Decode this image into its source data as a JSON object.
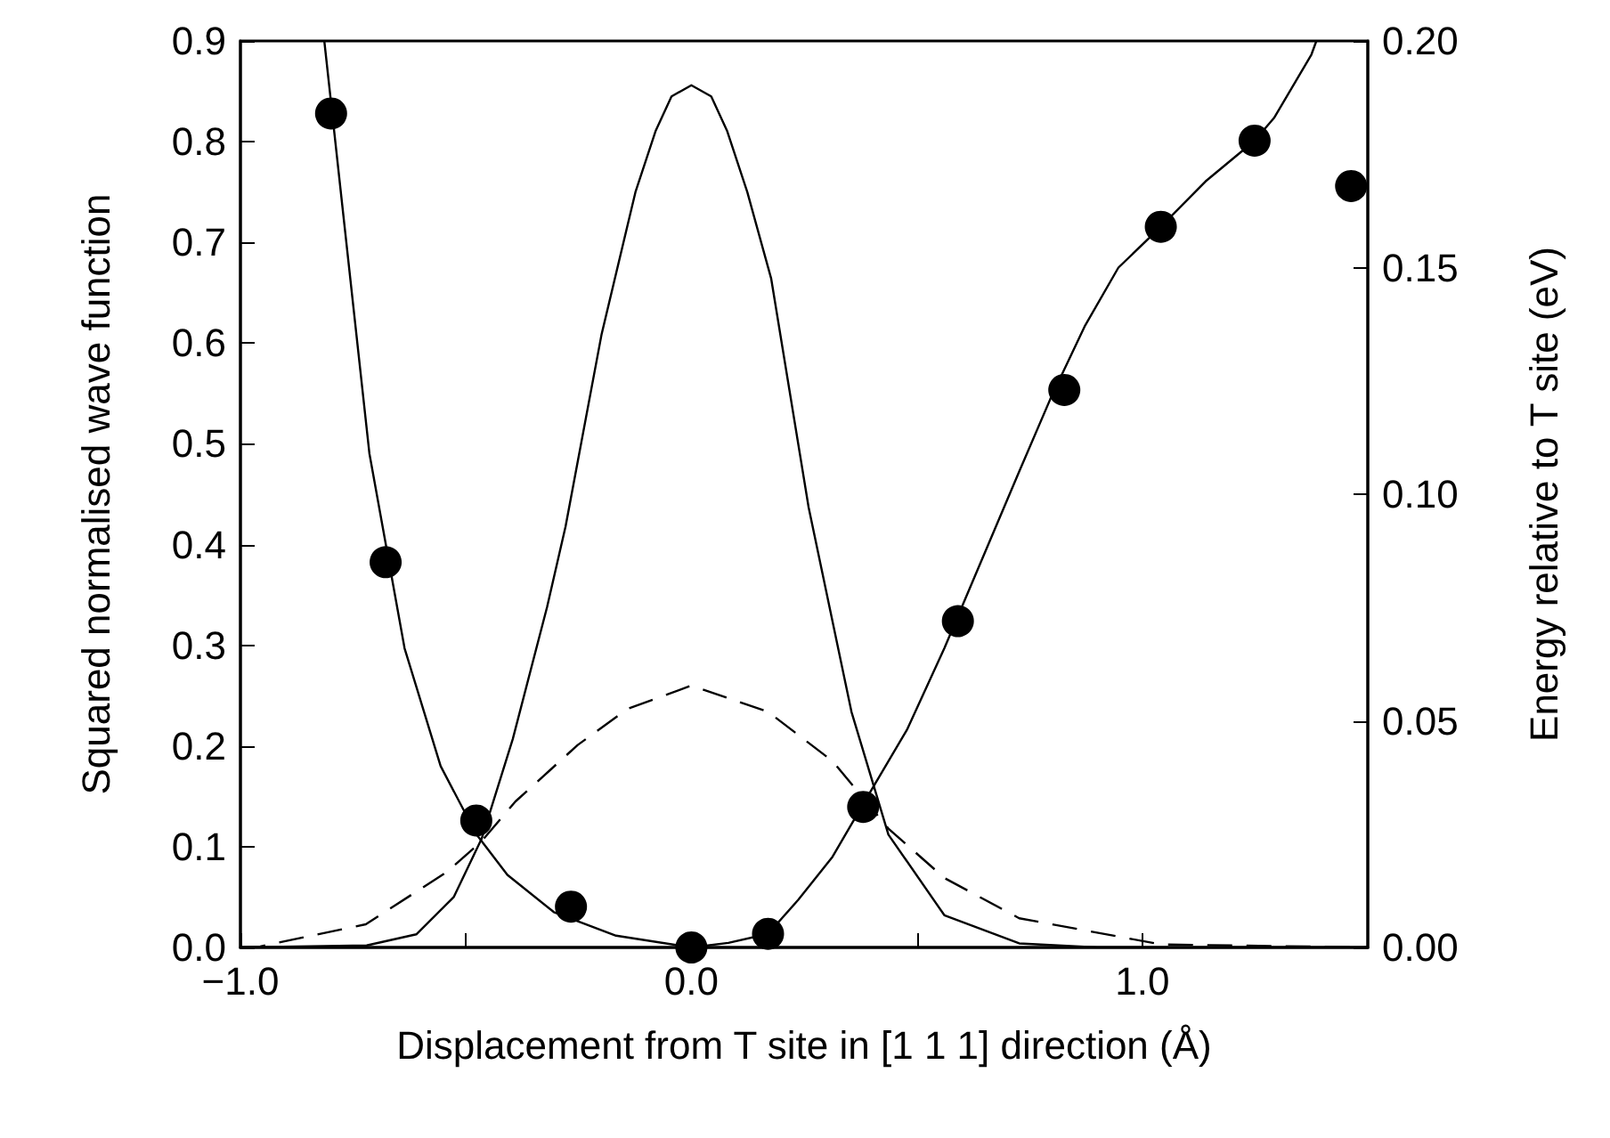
{
  "chart_data": {
    "type": "line",
    "xlabel": "Displacement from T site in [1 1 1] direction (Å)",
    "ylabel": "Squared normalised wave function",
    "y2label": "Energy relative to T site (eV)",
    "xlim": [
      -1.0,
      1.5
    ],
    "xticks": [
      {
        "value": -1.0,
        "label": "−1.0"
      },
      {
        "value": -0.5,
        "label": null
      },
      {
        "value": 0.0,
        "label": "0.0"
      },
      {
        "value": 0.5,
        "label": null
      },
      {
        "value": 1.0,
        "label": "1.0"
      }
    ],
    "ylim": [
      0,
      0.9
    ],
    "yticks": [
      {
        "value": 0,
        "label": "0.0"
      },
      0.1,
      0.2,
      0.3,
      0.4,
      0.5,
      0.6,
      0.7,
      0.8,
      0.9
    ],
    "y2lim": [
      0,
      0.2
    ],
    "y2ticks": [
      {
        "value": 0,
        "label": "0.00"
      },
      0.05,
      {
        "value": 0.1,
        "label": "0.10"
      },
      0.15,
      {
        "value": 0.2,
        "label": "0.20"
      }
    ],
    "grid": false,
    "series": [
      {
        "type": "line",
        "color": "#000000",
        "marker": "none",
        "line_style": "solid",
        "x": [
          -1.0,
          -0.72,
          -0.61,
          -0.527,
          -0.465,
          -0.396,
          -0.32,
          -0.279,
          -0.199,
          -0.124,
          -0.079,
          -0.044,
          0,
          0.044,
          0.079,
          0.124,
          0.177,
          0.26,
          0.355,
          0.437,
          0.561,
          0.727,
          0.9,
          1.1,
          1.5
        ],
        "values": [
          0,
          0.002,
          0.013,
          0.05,
          0.108,
          0.207,
          0.338,
          0.418,
          0.609,
          0.75,
          0.811,
          0.845,
          0.856,
          0.845,
          0.811,
          0.75,
          0.664,
          0.437,
          0.234,
          0.112,
          0.032,
          0.004,
          0,
          0,
          0
        ]
      },
      {
        "type": "line",
        "color": "#000000",
        "marker": "none",
        "line_style": "dashed",
        "x": [
          -1.0,
          -0.956,
          -0.722,
          -0.542,
          -0.466,
          -0.39,
          -0.252,
          -0.141,
          0,
          0.17,
          0.313,
          0.437,
          0.561,
          0.727,
          1.041,
          1.5
        ],
        "values": [
          0,
          0.001,
          0.023,
          0.075,
          0.105,
          0.145,
          0.201,
          0.237,
          0.26,
          0.234,
          0.185,
          0.118,
          0.069,
          0.029,
          0.003,
          0
        ]
      },
      {
        "type": "line",
        "axis": "y2",
        "color": "#000000",
        "marker": "none",
        "line_style": "solid",
        "x": [
          -0.814,
          -0.714,
          -0.636,
          -0.556,
          -0.477,
          -0.408,
          -0.305,
          -0.167,
          0,
          0.082,
          0.17,
          0.237,
          0.313,
          0.395,
          0.478,
          0.561,
          0.727,
          0.796,
          0.872,
          0.947,
          1.041,
          1.14,
          1.249,
          1.292,
          1.375,
          1.386
        ],
        "values": [
          0.2,
          0.109,
          0.066,
          0.04,
          0.025,
          0.016,
          0.0078,
          0.0026,
          0,
          0.001,
          0.003,
          0.0105,
          0.02,
          0.034,
          0.048,
          0.066,
          0.105,
          0.121,
          0.137,
          0.15,
          0.159,
          0.169,
          0.178,
          0.183,
          0.197,
          0.2
        ]
      },
      {
        "type": "scatter",
        "axis": "y2",
        "color": "#000000",
        "marker": "circle",
        "x": [
          -0.799,
          -0.678,
          -0.477,
          -0.267,
          0,
          0.17,
          0.381,
          0.591,
          0.827,
          1.041,
          1.249,
          1.463
        ],
        "values": [
          0.184,
          0.085,
          0.028,
          0.009,
          0,
          0.003,
          0.031,
          0.072,
          0.123,
          0.159,
          0.178,
          0.168
        ]
      }
    ]
  }
}
